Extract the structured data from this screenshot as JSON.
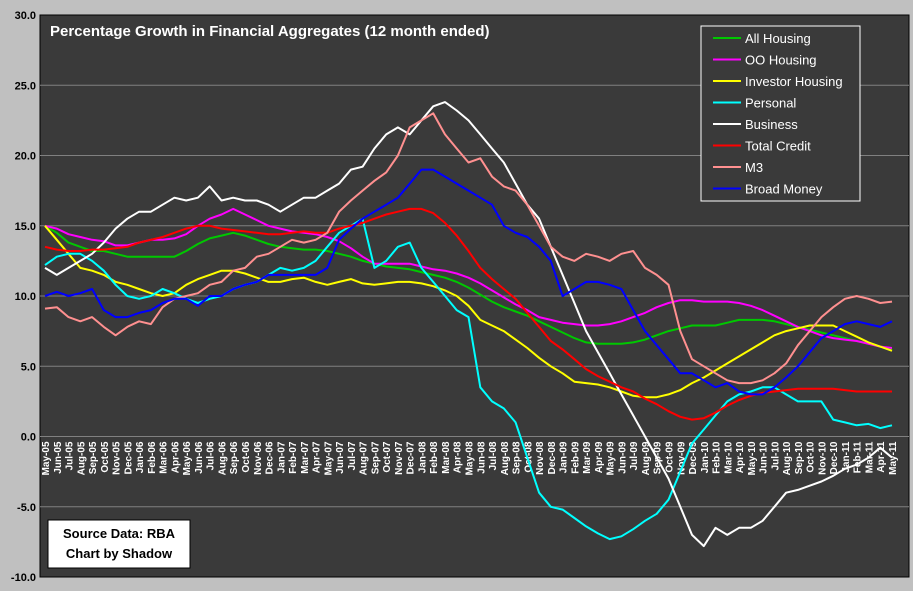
{
  "chart_data": {
    "type": "line",
    "title": "Percentage Growth in Financial Aggregates (12 month ended)",
    "xlabel": "",
    "ylabel": "",
    "ylim": [
      -10,
      30
    ],
    "yticks": [
      "30.0",
      "25.0",
      "20.0",
      "15.0",
      "10.0",
      "5.0",
      "0.0",
      "-5.0",
      "-10.0"
    ],
    "x": [
      "May-05",
      "Jun-05",
      "Jul-05",
      "Aug-05",
      "Sep-05",
      "Oct-05",
      "Nov-05",
      "Dec-05",
      "Jan-06",
      "Feb-06",
      "Mar-06",
      "Apr-06",
      "May-06",
      "Jun-06",
      "Jul-06",
      "Aug-06",
      "Sep-06",
      "Oct-06",
      "Nov-06",
      "Dec-06",
      "Jan-07",
      "Feb-07",
      "Mar-07",
      "Apr-07",
      "May-07",
      "Jun-07",
      "Jul-07",
      "Aug-07",
      "Sep-07",
      "Oct-07",
      "Nov-07",
      "Dec-07",
      "Jan-08",
      "Feb-08",
      "Mar-08",
      "Apr-08",
      "May-08",
      "Jun-08",
      "Jul-08",
      "Aug-08",
      "Sep-08",
      "Oct-08",
      "Nov-08",
      "Dec-08",
      "Jan-09",
      "Feb-09",
      "Mar-09",
      "Apr-09",
      "May-09",
      "Jun-09",
      "Jul-09",
      "Aug-09",
      "Sep-09",
      "Oct-09",
      "Nov-09",
      "Dec-09",
      "Jan-10",
      "Feb-10",
      "Mar-10",
      "Apr-10",
      "May-10",
      "Jun-10",
      "Jul-10",
      "Aug-10",
      "Sep-10",
      "Oct-10",
      "Nov-10",
      "Dec-10",
      "Jan-11",
      "Feb-11",
      "Mar-11",
      "Apr-11",
      "May-11"
    ],
    "series": [
      {
        "name": "All Housing",
        "color": "#00c800",
        "values": [
          15.0,
          14.5,
          13.8,
          13.5,
          13.2,
          13.2,
          13.0,
          12.8,
          12.8,
          12.8,
          12.8,
          12.8,
          13.2,
          13.7,
          14.1,
          14.3,
          14.5,
          14.3,
          14.0,
          13.7,
          13.5,
          13.4,
          13.3,
          13.3,
          13.2,
          13.0,
          12.8,
          12.5,
          12.3,
          12.1,
          12.0,
          11.9,
          11.7,
          11.5,
          11.3,
          11.0,
          10.6,
          10.1,
          9.6,
          9.2,
          8.9,
          8.6,
          8.2,
          7.8,
          7.4,
          7.0,
          6.7,
          6.6,
          6.6,
          6.6,
          6.7,
          6.9,
          7.2,
          7.5,
          7.7,
          7.9,
          7.9,
          7.9,
          8.1,
          8.3,
          8.3,
          8.3,
          8.2,
          8.0,
          7.8,
          7.6,
          7.4,
          7.2,
          7.0,
          6.8,
          6.6,
          6.4,
          6.2
        ]
      },
      {
        "name": "OO Housing",
        "color": "#ff00ff",
        "values": [
          15.0,
          14.8,
          14.4,
          14.2,
          14.0,
          13.9,
          13.6,
          13.6,
          13.8,
          14.0,
          14.0,
          14.1,
          14.4,
          15.0,
          15.5,
          15.8,
          16.2,
          15.8,
          15.4,
          15.0,
          14.8,
          14.6,
          14.5,
          14.4,
          14.2,
          13.9,
          13.4,
          12.8,
          12.3,
          12.3,
          12.3,
          12.3,
          12.1,
          11.9,
          11.8,
          11.6,
          11.3,
          10.9,
          10.4,
          9.9,
          9.4,
          9.0,
          8.5,
          8.3,
          8.1,
          8.0,
          7.9,
          7.9,
          8.0,
          8.2,
          8.5,
          8.8,
          9.2,
          9.5,
          9.7,
          9.7,
          9.6,
          9.6,
          9.6,
          9.5,
          9.3,
          9.0,
          8.6,
          8.2,
          7.8,
          7.5,
          7.2,
          7.0,
          6.9,
          6.8,
          6.6,
          6.4,
          6.3
        ]
      },
      {
        "name": "Investor Housing",
        "color": "#ffff00",
        "values": [
          15.0,
          14.0,
          13.0,
          12.0,
          11.8,
          11.5,
          11.0,
          10.8,
          10.5,
          10.2,
          10.0,
          10.2,
          10.8,
          11.2,
          11.5,
          11.8,
          11.8,
          11.6,
          11.3,
          11.0,
          11.0,
          11.2,
          11.3,
          11.0,
          10.8,
          11.0,
          11.2,
          10.9,
          10.8,
          10.9,
          11.0,
          11.0,
          10.9,
          10.7,
          10.4,
          10.0,
          9.3,
          8.3,
          7.9,
          7.5,
          6.9,
          6.3,
          5.6,
          5.0,
          4.5,
          3.9,
          3.8,
          3.7,
          3.5,
          3.2,
          2.9,
          2.8,
          2.8,
          3.0,
          3.3,
          3.8,
          4.2,
          4.7,
          5.2,
          5.7,
          6.2,
          6.7,
          7.2,
          7.5,
          7.7,
          7.9,
          7.9,
          7.9,
          7.5,
          7.1,
          6.7,
          6.4,
          6.1
        ]
      },
      {
        "name": "Personal",
        "color": "#00ffff",
        "values": [
          12.2,
          12.8,
          13.0,
          13.0,
          12.5,
          11.8,
          10.8,
          10.0,
          9.8,
          10.0,
          10.5,
          10.2,
          9.8,
          9.5,
          9.8,
          10.0,
          10.5,
          10.8,
          11.0,
          11.5,
          12.0,
          11.8,
          12.0,
          12.5,
          13.5,
          14.5,
          15.0,
          15.5,
          12.0,
          12.5,
          13.5,
          13.8,
          12.0,
          11.0,
          10.0,
          9.0,
          8.5,
          3.5,
          2.5,
          2.0,
          1.0,
          -1.5,
          -4.0,
          -5.0,
          -5.2,
          -5.8,
          -6.4,
          -6.9,
          -7.3,
          -7.1,
          -6.6,
          -6.0,
          -5.5,
          -4.5,
          -2.5,
          -0.5,
          0.5,
          1.5,
          2.5,
          3.0,
          3.2,
          3.5,
          3.5,
          3.0,
          2.5,
          2.5,
          2.5,
          1.2,
          1.0,
          0.8,
          0.9,
          0.6,
          0.8
        ]
      },
      {
        "name": "Business",
        "color": "#ffffff",
        "values": [
          12.0,
          11.5,
          12.0,
          12.5,
          13.0,
          13.8,
          14.8,
          15.5,
          16.0,
          16.0,
          16.5,
          17.0,
          16.8,
          17.0,
          17.8,
          16.8,
          17.0,
          16.8,
          16.8,
          16.5,
          16.0,
          16.5,
          17.0,
          17.0,
          17.5,
          18.0,
          19.0,
          19.2,
          20.5,
          21.5,
          22.0,
          21.5,
          22.5,
          23.5,
          23.8,
          23.2,
          22.5,
          21.5,
          20.5,
          19.5,
          18.0,
          16.5,
          15.5,
          13.5,
          11.5,
          9.5,
          7.5,
          6.0,
          4.5,
          3.0,
          1.5,
          0.0,
          -1.5,
          -3.0,
          -5.0,
          -7.0,
          -7.8,
          -6.5,
          -7.0,
          -6.5,
          -6.5,
          -6.0,
          -5.0,
          -4.0,
          -3.8,
          -3.5,
          -3.2,
          -2.8,
          -2.3,
          -2.0,
          -1.5,
          -0.8,
          -1.5
        ]
      },
      {
        "name": "Total Credit",
        "color": "#ff0000",
        "values": [
          13.5,
          13.3,
          13.2,
          13.2,
          13.3,
          13.3,
          13.4,
          13.5,
          13.8,
          14.0,
          14.2,
          14.5,
          14.8,
          15.0,
          15.0,
          14.8,
          14.7,
          14.6,
          14.5,
          14.4,
          14.4,
          14.5,
          14.6,
          14.5,
          14.5,
          14.8,
          15.0,
          15.2,
          15.5,
          15.8,
          16.0,
          16.2,
          16.2,
          15.9,
          15.2,
          14.3,
          13.2,
          12.0,
          11.2,
          10.5,
          9.8,
          8.8,
          7.8,
          6.8,
          6.2,
          5.5,
          4.8,
          4.3,
          3.9,
          3.5,
          3.2,
          2.7,
          2.3,
          1.8,
          1.4,
          1.2,
          1.3,
          1.7,
          2.2,
          2.6,
          2.9,
          3.1,
          3.2,
          3.3,
          3.4,
          3.4,
          3.4,
          3.4,
          3.3,
          3.2,
          3.2,
          3.2,
          3.2
        ]
      },
      {
        "name": "M3",
        "color": "#ff9090",
        "values": [
          9.1,
          9.2,
          8.5,
          8.2,
          8.5,
          7.8,
          7.2,
          7.8,
          8.2,
          8.0,
          9.2,
          9.8,
          10.0,
          10.2,
          10.8,
          11.0,
          11.8,
          12.0,
          12.8,
          13.0,
          13.5,
          14.0,
          13.8,
          14.0,
          14.5,
          16.0,
          16.8,
          17.5,
          18.2,
          18.8,
          20.0,
          22.0,
          22.5,
          23.0,
          21.5,
          20.5,
          19.5,
          19.8,
          18.5,
          17.8,
          17.5,
          16.5,
          15.0,
          13.5,
          12.8,
          12.5,
          13.0,
          12.8,
          12.5,
          13.0,
          13.2,
          12.0,
          11.5,
          10.8,
          7.5,
          5.5,
          5.0,
          4.5,
          4.0,
          3.8,
          3.8,
          4.0,
          4.5,
          5.2,
          6.5,
          7.5,
          8.5,
          9.2,
          9.8,
          10.0,
          9.8,
          9.5,
          9.6
        ]
      },
      {
        "name": "Broad Money",
        "color": "#0000ff",
        "values": [
          10.0,
          10.3,
          10.0,
          10.2,
          10.5,
          9.0,
          8.5,
          8.5,
          8.8,
          9.0,
          9.5,
          9.8,
          9.8,
          9.3,
          10.0,
          10.0,
          10.5,
          10.8,
          11.0,
          11.5,
          11.5,
          11.5,
          11.5,
          11.5,
          12.0,
          14.0,
          14.8,
          15.5,
          16.0,
          16.5,
          17.0,
          18.0,
          19.0,
          19.0,
          18.5,
          18.0,
          17.5,
          17.0,
          16.5,
          15.0,
          14.5,
          14.2,
          13.5,
          12.5,
          10.0,
          10.5,
          11.0,
          11.0,
          10.8,
          10.5,
          9.0,
          7.5,
          6.5,
          5.5,
          4.5,
          4.5,
          4.0,
          3.5,
          3.8,
          3.2,
          3.0,
          3.0,
          3.5,
          4.2,
          5.0,
          6.0,
          7.0,
          7.5,
          8.0,
          8.2,
          8.0,
          7.8,
          8.2
        ]
      }
    ],
    "annotations": [
      "Source Data: RBA",
      "Chart by Shadow"
    ],
    "legend_position": "top-right",
    "colors": {
      "plot_background": "#3a3a3a",
      "outer_background": "#c0c0c0",
      "gridline": "#808080",
      "legend_background": "#3a3a3a",
      "note_background": "#ffffff"
    }
  }
}
